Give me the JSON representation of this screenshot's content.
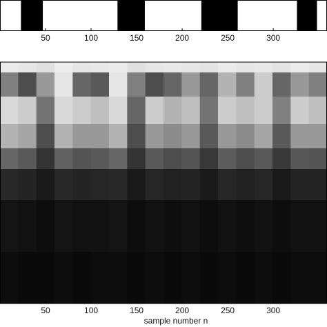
{
  "chart_data": [
    {
      "type": "strip",
      "xlim": [
        0,
        359
      ],
      "xticks": [
        50,
        100,
        150,
        200,
        250,
        300
      ],
      "color": "#000000",
      "segments": [
        [
          23,
          47
        ],
        [
          129,
          159
        ],
        [
          221,
          261
        ],
        [
          326,
          348
        ]
      ]
    },
    {
      "type": "heatmap",
      "xlim": [
        0,
        359
      ],
      "xticks": [
        50,
        100,
        150,
        200,
        250,
        300
      ],
      "xlabel": "sample number n",
      "values": [
        [
          0.92,
          0.9,
          0.88,
          0.93,
          0.9,
          0.91,
          0.92,
          0.88,
          0.9,
          0.91,
          0.9,
          0.89,
          0.92,
          0.9,
          0.91,
          0.89,
          0.92,
          0.9
        ],
        [
          0.5,
          0.3,
          0.6,
          0.9,
          0.4,
          0.35,
          0.9,
          0.5,
          0.3,
          0.4,
          0.6,
          0.4,
          0.7,
          0.5,
          0.8,
          0.4,
          0.6,
          0.5
        ],
        [
          0.85,
          0.8,
          0.45,
          0.85,
          0.8,
          0.75,
          0.85,
          0.4,
          0.8,
          0.7,
          0.75,
          0.45,
          0.8,
          0.75,
          0.8,
          0.5,
          0.8,
          0.75
        ],
        [
          0.7,
          0.65,
          0.3,
          0.7,
          0.6,
          0.6,
          0.7,
          0.3,
          0.6,
          0.55,
          0.6,
          0.35,
          0.6,
          0.55,
          0.65,
          0.35,
          0.6,
          0.6
        ],
        [
          0.4,
          0.35,
          0.2,
          0.38,
          0.33,
          0.35,
          0.4,
          0.2,
          0.35,
          0.3,
          0.33,
          0.22,
          0.36,
          0.3,
          0.35,
          0.22,
          0.34,
          0.33
        ],
        [
          0.16,
          0.14,
          0.1,
          0.16,
          0.14,
          0.15,
          0.16,
          0.1,
          0.15,
          0.13,
          0.14,
          0.1,
          0.15,
          0.13,
          0.15,
          0.1,
          0.14,
          0.14
        ],
        [
          0.08,
          0.07,
          0.05,
          0.08,
          0.07,
          0.07,
          0.08,
          0.05,
          0.07,
          0.06,
          0.07,
          0.05,
          0.07,
          0.06,
          0.07,
          0.05,
          0.07,
          0.07
        ],
        [
          0.05,
          0.04,
          0.04,
          0.05,
          0.04,
          0.05,
          0.05,
          0.04,
          0.05,
          0.04,
          0.05,
          0.04,
          0.05,
          0.04,
          0.05,
          0.04,
          0.05,
          0.05
        ]
      ]
    }
  ]
}
